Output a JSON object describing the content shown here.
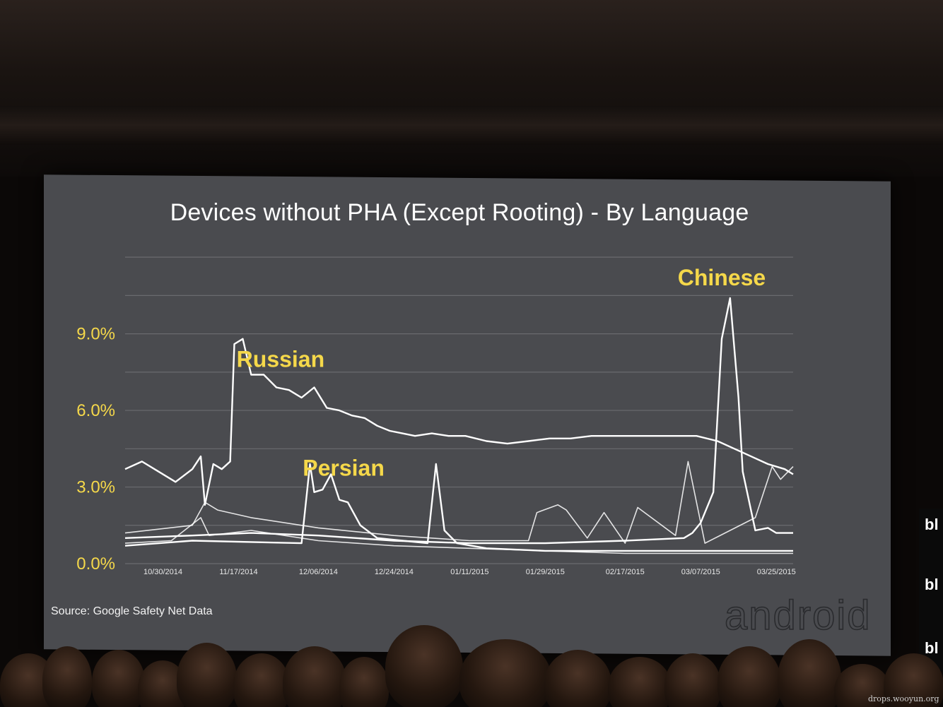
{
  "slide": {
    "title": "Devices without PHA (Except Rooting) - By Language",
    "source": "Source: Google Safety Net Data",
    "brand": "android",
    "colors": {
      "background": "#4a4b4f",
      "line": "#ffffff",
      "accent": "#f5d84a",
      "grid": "#6a6b6f"
    }
  },
  "chart_data": {
    "type": "line",
    "title": "Devices without PHA (Except Rooting) - By Language",
    "xlabel": "",
    "ylabel": "",
    "x_ticks": [
      "10/30/2014",
      "11/17/2014",
      "12/06/2014",
      "12/24/2014",
      "01/11/2015",
      "01/29/2015",
      "02/17/2015",
      "03/07/2015",
      "03/25/2015"
    ],
    "x_range": [
      "2014-10-21",
      "2015-03-29"
    ],
    "y_ticks": [
      "0.0%",
      "3.0%",
      "6.0%",
      "9.0%"
    ],
    "ylim": [
      0,
      13
    ],
    "grid": true,
    "annotations": [
      "Russian",
      "Persian",
      "Chinese"
    ],
    "series": [
      {
        "name": "Russian",
        "x": [
          "2014-10-21",
          "2014-10-25",
          "2014-10-29",
          "2014-11-02",
          "2014-11-06",
          "2014-11-08",
          "2014-11-09",
          "2014-11-11",
          "2014-11-13",
          "2014-11-15",
          "2014-11-16",
          "2014-11-18",
          "2014-11-20",
          "2014-11-23",
          "2014-11-26",
          "2014-11-29",
          "2014-12-02",
          "2014-12-05",
          "2014-12-08",
          "2014-12-11",
          "2014-12-14",
          "2014-12-17",
          "2014-12-20",
          "2014-12-23",
          "2014-12-26",
          "2014-12-29",
          "2015-01-02",
          "2015-01-06",
          "2015-01-10",
          "2015-01-15",
          "2015-01-20",
          "2015-01-25",
          "2015-01-30",
          "2015-02-04",
          "2015-02-09",
          "2015-02-14",
          "2015-02-19",
          "2015-02-24",
          "2015-03-01",
          "2015-03-06",
          "2015-03-11",
          "2015-03-15",
          "2015-03-19",
          "2015-03-23",
          "2015-03-27",
          "2015-03-29"
        ],
        "values": [
          3.7,
          4.0,
          3.6,
          3.2,
          3.7,
          4.2,
          2.3,
          3.9,
          3.7,
          4.0,
          8.6,
          8.8,
          7.4,
          7.4,
          6.9,
          6.8,
          6.5,
          6.9,
          6.1,
          6.0,
          5.8,
          5.7,
          5.4,
          5.2,
          5.1,
          5.0,
          5.1,
          5.0,
          5.0,
          4.8,
          4.7,
          4.8,
          4.9,
          4.9,
          5.0,
          5.0,
          5.0,
          5.0,
          5.0,
          5.0,
          4.8,
          4.5,
          4.2,
          3.9,
          3.7,
          3.5
        ]
      },
      {
        "name": "Chinese",
        "x": [
          "2014-10-21",
          "2014-11-06",
          "2014-11-20",
          "2014-12-06",
          "2014-12-24",
          "2015-01-11",
          "2015-01-29",
          "2015-02-17",
          "2015-03-03",
          "2015-03-05",
          "2015-03-07",
          "2015-03-10",
          "2015-03-12",
          "2015-03-14",
          "2015-03-16",
          "2015-03-17",
          "2015-03-20",
          "2015-03-23",
          "2015-03-25",
          "2015-03-29"
        ],
        "values": [
          1.0,
          1.1,
          1.2,
          1.1,
          0.9,
          0.8,
          0.8,
          0.9,
          1.0,
          1.2,
          1.6,
          2.8,
          8.8,
          10.4,
          6.5,
          3.6,
          1.3,
          1.4,
          1.2,
          1.2
        ]
      },
      {
        "name": "Persian",
        "x": [
          "2014-10-21",
          "2014-11-06",
          "2014-12-02",
          "2014-12-04",
          "2014-12-05",
          "2014-12-07",
          "2014-12-09",
          "2014-12-11",
          "2014-12-13",
          "2014-12-16",
          "2014-12-20",
          "2014-12-26",
          "2015-01-01",
          "2015-01-03",
          "2015-01-05",
          "2015-01-08",
          "2015-01-15",
          "2015-01-29",
          "2015-02-17",
          "2015-03-07",
          "2015-03-29"
        ],
        "values": [
          0.7,
          0.9,
          0.8,
          3.9,
          2.8,
          2.9,
          3.5,
          2.5,
          2.4,
          1.5,
          1.0,
          0.9,
          0.8,
          3.9,
          1.3,
          0.8,
          0.6,
          0.5,
          0.5,
          0.5,
          0.5
        ]
      },
      {
        "name": "",
        "x": [
          "2014-10-21",
          "2014-11-06",
          "2014-11-09",
          "2014-11-12",
          "2014-11-20",
          "2014-12-06",
          "2014-12-24",
          "2015-01-11",
          "2015-01-25",
          "2015-01-27",
          "2015-02-01",
          "2015-02-03",
          "2015-02-08",
          "2015-02-12",
          "2015-02-17",
          "2015-02-20",
          "2015-03-01",
          "2015-03-04",
          "2015-03-08",
          "2015-03-20",
          "2015-03-24",
          "2015-03-26",
          "2015-03-29"
        ],
        "values": [
          1.2,
          1.5,
          2.4,
          2.1,
          1.8,
          1.4,
          1.1,
          0.9,
          0.9,
          2.0,
          2.3,
          2.1,
          1.0,
          2.0,
          0.8,
          2.2,
          1.1,
          4.0,
          0.8,
          1.8,
          3.8,
          3.3,
          3.8
        ]
      },
      {
        "name": "",
        "x": [
          "2014-10-21",
          "2014-11-01",
          "2014-11-08",
          "2014-11-10",
          "2014-11-20",
          "2014-12-06",
          "2014-12-24",
          "2015-01-11",
          "2015-01-29",
          "2015-02-17",
          "2015-03-07",
          "2015-03-29"
        ],
        "values": [
          0.8,
          0.9,
          1.8,
          1.1,
          1.3,
          0.9,
          0.7,
          0.6,
          0.5,
          0.4,
          0.4,
          0.4
        ]
      }
    ]
  }
}
